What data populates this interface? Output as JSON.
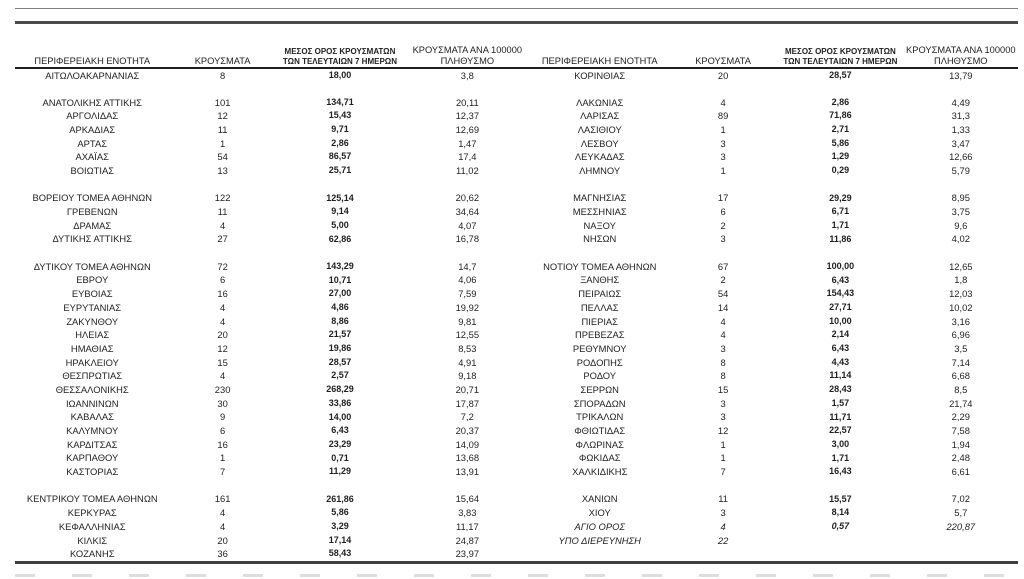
{
  "colors": {
    "rule_dark": "#4a4a4a",
    "rule_thin": "#808080",
    "text": "#1f1f1f",
    "background": "#ffffff"
  },
  "table": {
    "headers": {
      "region": "ΠΕΡΙΦΕΡΕΙΑΚΗ ΕΝΟΤΗΤΑ",
      "cases": "ΚΡΟΥΣΜΑΤΑ",
      "avg7": "ΜΕΣΟΣ ΟΡΟΣ ΚΡΟΥΣΜΑΤΩΝ ΤΩΝ ΤΕΛΕΥΤΑΙΩΝ 7 ΗΜΕΡΩΝ",
      "per100k": "ΚΡΟΥΣΜΑΤΑ ΑΝΑ 100000 ΠΛΗΘΥΣΜΟ"
    },
    "left_rows": [
      {
        "region": "ΑΙΤΩΛΟΑΚΑΡΝΑΝΙΑΣ",
        "cases": "8",
        "avg7": "18,00",
        "per100k": "3,8"
      },
      null,
      {
        "region": "ΑΝΑΤΟΛΙΚΗΣ ΑΤΤΙΚΗΣ",
        "cases": "101",
        "avg7": "134,71",
        "per100k": "20,11"
      },
      {
        "region": "ΑΡΓΟΛΙΔΑΣ",
        "cases": "12",
        "avg7": "15,43",
        "per100k": "12,37"
      },
      {
        "region": "ΑΡΚΑΔΙΑΣ",
        "cases": "11",
        "avg7": "9,71",
        "per100k": "12,69"
      },
      {
        "region": "ΑΡΤΑΣ",
        "cases": "1",
        "avg7": "2,86",
        "per100k": "1,47"
      },
      {
        "region": "ΑΧΑΪΑΣ",
        "cases": "54",
        "avg7": "86,57",
        "per100k": "17,4"
      },
      {
        "region": "ΒΟΙΩΤΙΑΣ",
        "cases": "13",
        "avg7": "25,71",
        "per100k": "11,02"
      },
      null,
      {
        "region": "ΒΟΡΕΙΟΥ ΤΟΜΕΑ ΑΘΗΝΩΝ",
        "cases": "122",
        "avg7": "125,14",
        "per100k": "20,62"
      },
      {
        "region": "ΓΡΕΒΕΝΩΝ",
        "cases": "11",
        "avg7": "9,14",
        "per100k": "34,64"
      },
      {
        "region": "ΔΡΑΜΑΣ",
        "cases": "4",
        "avg7": "5,00",
        "per100k": "4,07"
      },
      {
        "region": "ΔΥΤΙΚΗΣ ΑΤΤΙΚΗΣ",
        "cases": "27",
        "avg7": "62,86",
        "per100k": "16,78"
      },
      null,
      {
        "region": "ΔΥΤΙΚΟΥ ΤΟΜΕΑ ΑΘΗΝΩΝ",
        "cases": "72",
        "avg7": "143,29",
        "per100k": "14,7"
      },
      {
        "region": "ΕΒΡΟΥ",
        "cases": "6",
        "avg7": "10,71",
        "per100k": "4,06"
      },
      {
        "region": "ΕΥΒΟΙΑΣ",
        "cases": "16",
        "avg7": "27,00",
        "per100k": "7,59"
      },
      {
        "region": "ΕΥΡΥΤΑΝΙΑΣ",
        "cases": "4",
        "avg7": "4,86",
        "per100k": "19,92"
      },
      {
        "region": "ΖΑΚΥΝΘΟΥ",
        "cases": "4",
        "avg7": "8,86",
        "per100k": "9,81"
      },
      {
        "region": "ΗΛΕΙΑΣ",
        "cases": "20",
        "avg7": "21,57",
        "per100k": "12,55"
      },
      {
        "region": "ΗΜΑΘΙΑΣ",
        "cases": "12",
        "avg7": "19,86",
        "per100k": "8,53"
      },
      {
        "region": "ΗΡΑΚΛΕΙΟΥ",
        "cases": "15",
        "avg7": "28,57",
        "per100k": "4,91"
      },
      {
        "region": "ΘΕΣΠΡΩΤΙΑΣ",
        "cases": "4",
        "avg7": "2,57",
        "per100k": "9,18"
      },
      {
        "region": "ΘΕΣΣΑΛΟΝΙΚΗΣ",
        "cases": "230",
        "avg7": "268,29",
        "per100k": "20,71"
      },
      {
        "region": "ΙΩΑΝΝΙΝΩΝ",
        "cases": "30",
        "avg7": "33,86",
        "per100k": "17,87"
      },
      {
        "region": "ΚΑΒΑΛΑΣ",
        "cases": "9",
        "avg7": "14,00",
        "per100k": "7,2"
      },
      {
        "region": "ΚΑΛΥΜΝΟΥ",
        "cases": "6",
        "avg7": "6,43",
        "per100k": "20,37"
      },
      {
        "region": "ΚΑΡΔΙΤΣΑΣ",
        "cases": "16",
        "avg7": "23,29",
        "per100k": "14,09"
      },
      {
        "region": "ΚΑΡΠΑΘΟΥ",
        "cases": "1",
        "avg7": "0,71",
        "per100k": "13,68"
      },
      {
        "region": "ΚΑΣΤΟΡΙΑΣ",
        "cases": "7",
        "avg7": "11,29",
        "per100k": "13,91"
      },
      null,
      {
        "region": "ΚΕΝΤΡΙΚΟΥ ΤΟΜΕΑ ΑΘΗΝΩΝ",
        "cases": "161",
        "avg7": "261,86",
        "per100k": "15,64"
      },
      {
        "region": "ΚΕΡΚΥΡΑΣ",
        "cases": "4",
        "avg7": "5,86",
        "per100k": "3,83"
      },
      {
        "region": "ΚΕΦΑΛΛΗΝΙΑΣ",
        "cases": "4",
        "avg7": "3,29",
        "per100k": "11,17"
      },
      {
        "region": "ΚΙΛΚΙΣ",
        "cases": "20",
        "avg7": "17,14",
        "per100k": "24,87"
      },
      {
        "region": "ΚΟΖΑΝΗΣ",
        "cases": "36",
        "avg7": "58,43",
        "per100k": "23,97"
      }
    ],
    "right_rows": [
      {
        "region": "ΚΟΡΙΝΘΙΑΣ",
        "cases": "20",
        "avg7": "28,57",
        "per100k": "13,79"
      },
      null,
      {
        "region": "ΛΑΚΩΝΙΑΣ",
        "cases": "4",
        "avg7": "2,86",
        "per100k": "4,49"
      },
      {
        "region": "ΛΑΡΙΣΑΣ",
        "cases": "89",
        "avg7": "71,86",
        "per100k": "31,3"
      },
      {
        "region": "ΛΑΣΙΘΙΟΥ",
        "cases": "1",
        "avg7": "2,71",
        "per100k": "1,33"
      },
      {
        "region": "ΛΕΣΒΟΥ",
        "cases": "3",
        "avg7": "5,86",
        "per100k": "3,47"
      },
      {
        "region": "ΛΕΥΚΑΔΑΣ",
        "cases": "3",
        "avg7": "1,29",
        "per100k": "12,66"
      },
      {
        "region": "ΛΗΜΝΟΥ",
        "cases": "1",
        "avg7": "0,29",
        "per100k": "5,79"
      },
      null,
      {
        "region": "ΜΑΓΝΗΣΙΑΣ",
        "cases": "17",
        "avg7": "29,29",
        "per100k": "8,95"
      },
      {
        "region": "ΜΕΣΣΗΝΙΑΣ",
        "cases": "6",
        "avg7": "6,71",
        "per100k": "3,75"
      },
      {
        "region": "ΝΑΞΟΥ",
        "cases": "2",
        "avg7": "1,71",
        "per100k": "9,6"
      },
      {
        "region": "ΝΗΣΩΝ",
        "cases": "3",
        "avg7": "11,86",
        "per100k": "4,02"
      },
      null,
      {
        "region": "ΝΟΤΙΟΥ ΤΟΜΕΑ ΑΘΗΝΩΝ",
        "cases": "67",
        "avg7": "100,00",
        "per100k": "12,65"
      },
      {
        "region": "ΞΑΝΘΗΣ",
        "cases": "2",
        "avg7": "6,43",
        "per100k": "1,8"
      },
      {
        "region": "ΠΕΙΡΑΙΩΣ",
        "cases": "54",
        "avg7": "154,43",
        "per100k": "12,03"
      },
      {
        "region": "ΠΕΛΛΑΣ",
        "cases": "14",
        "avg7": "27,71",
        "per100k": "10,02"
      },
      {
        "region": "ΠΙΕΡΙΑΣ",
        "cases": "4",
        "avg7": "10,00",
        "per100k": "3,16"
      },
      {
        "region": "ΠΡΕΒΕΖΑΣ",
        "cases": "4",
        "avg7": "2,14",
        "per100k": "6,96"
      },
      {
        "region": "ΡΕΘΥΜΝΟΥ",
        "cases": "3",
        "avg7": "6,43",
        "per100k": "3,5"
      },
      {
        "region": "ΡΟΔΟΠΗΣ",
        "cases": "8",
        "avg7": "4,43",
        "per100k": "7,14"
      },
      {
        "region": "ΡΟΔΟΥ",
        "cases": "8",
        "avg7": "11,14",
        "per100k": "6,68"
      },
      {
        "region": "ΣΕΡΡΩΝ",
        "cases": "15",
        "avg7": "28,43",
        "per100k": "8,5"
      },
      {
        "region": "ΣΠΟΡΑΔΩΝ",
        "cases": "3",
        "avg7": "1,57",
        "per100k": "21,74"
      },
      {
        "region": "ΤΡΙΚΑΛΩΝ",
        "cases": "3",
        "avg7": "11,71",
        "per100k": "2,29"
      },
      {
        "region": "ΦΘΙΩΤΙΔΑΣ",
        "cases": "12",
        "avg7": "22,57",
        "per100k": "7,58"
      },
      {
        "region": "ΦΛΩΡΙΝΑΣ",
        "cases": "1",
        "avg7": "3,00",
        "per100k": "1,94"
      },
      {
        "region": "ΦΩΚΙΔΑΣ",
        "cases": "1",
        "avg7": "1,71",
        "per100k": "2,48"
      },
      {
        "region": "ΧΑΛΚΙΔΙΚΗΣ",
        "cases": "7",
        "avg7": "16,43",
        "per100k": "6,61"
      },
      null,
      {
        "region": "ΧΑΝΙΩΝ",
        "cases": "11",
        "avg7": "15,57",
        "per100k": "7,02"
      },
      {
        "region": "ΧΙΟΥ",
        "cases": "3",
        "avg7": "8,14",
        "per100k": "5,7"
      },
      {
        "region": "ΑΓΙΟ ΟΡΟΣ",
        "cases": "4",
        "avg7": "0,57",
        "per100k": "220,87",
        "italic": true
      },
      {
        "region": "ΥΠΟ ΔΙΕΡΕΥΝΗΣΗ",
        "cases": "22",
        "avg7": "",
        "per100k": "",
        "italic": true
      },
      null
    ]
  }
}
